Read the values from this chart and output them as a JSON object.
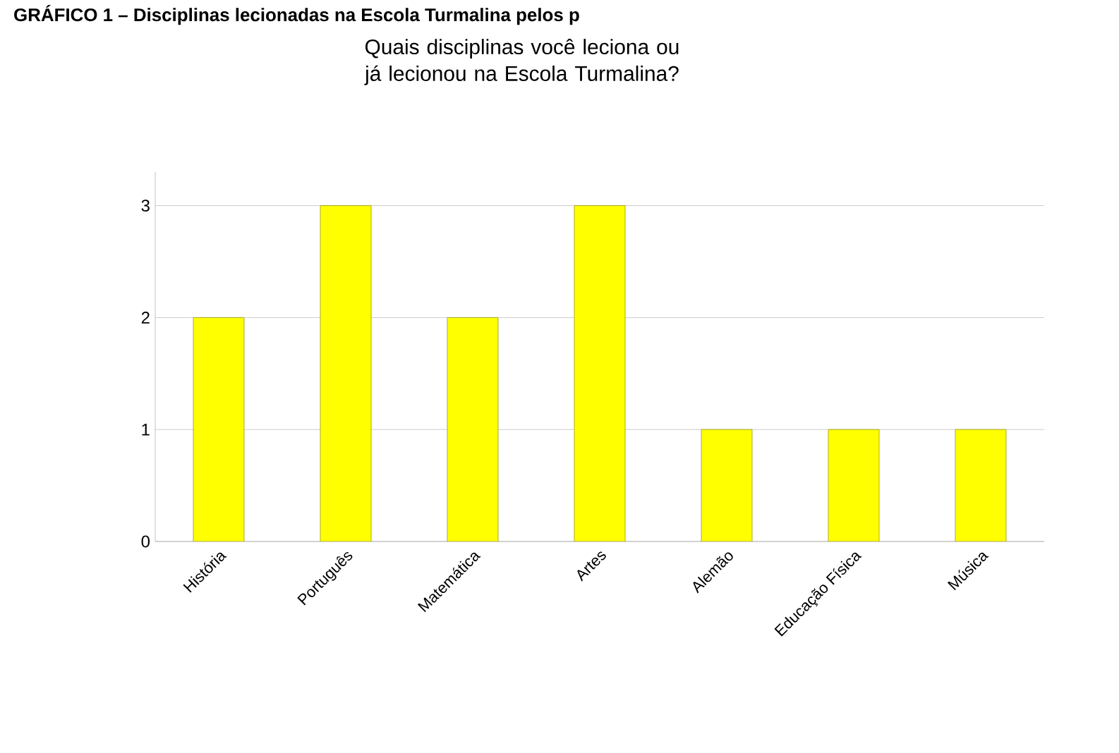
{
  "chart_data": {
    "type": "bar",
    "title": "Quais disciplinas você leciona ou já lecionou na Escola Turmalina?",
    "annotations": [
      "GRÁFICO 1 – Disciplinas lecionadas na Escola Turmalina pelos p"
    ],
    "categories": [
      "História",
      "Português",
      "Matemática",
      "Artes",
      "Alemão",
      "Educação Física",
      "Música"
    ],
    "values": [
      2,
      3,
      2,
      3,
      1,
      1,
      1
    ],
    "color": "#ffff00",
    "ylim": [
      0,
      3.3
    ],
    "yticks": [
      0,
      1,
      2,
      3
    ],
    "grid": "y"
  }
}
